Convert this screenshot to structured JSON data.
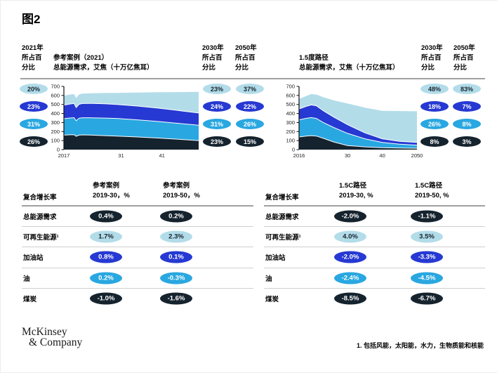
{
  "page": {
    "title": "图2",
    "footnote": "1. 包括风能，太阳能，水力，生物质能和核能",
    "logo_line1": "McKinsey",
    "logo_line2": "& Company"
  },
  "palette": {
    "light": {
      "bg": "#b3dce9",
      "fg": "#15232e"
    },
    "royal": {
      "bg": "#2639d2",
      "fg": "#ffffff"
    },
    "cyan": {
      "bg": "#29a7e0",
      "fg": "#ffffff"
    },
    "navy": {
      "bg": "#15232e",
      "fg": "#ffffff"
    }
  },
  "shares": {
    "layer_colors": [
      "light",
      "royal",
      "cyan",
      "navy"
    ],
    "left2021": {
      "year_label": "2021年",
      "sub1": "所占百",
      "sub2": "分比",
      "values": [
        "20%",
        "23%",
        "31%",
        "26%"
      ]
    },
    "left2030": {
      "year_label": "2030年",
      "sub1": "所占百",
      "sub2": "分比",
      "values": [
        "23%",
        "24%",
        "31%",
        "23%"
      ]
    },
    "left2050": {
      "year_label": "2050年",
      "sub1": "所占百",
      "sub2": "分比",
      "values": [
        "37%",
        "22%",
        "26%",
        "15%"
      ]
    },
    "right2030": {
      "year_label": "2030年",
      "sub1": "所占百",
      "sub2": "分比",
      "values": [
        "48%",
        "18%",
        "26%",
        "8%"
      ]
    },
    "right2050": {
      "year_label": "2050年",
      "sub1": "所占百",
      "sub2": "分比",
      "values": [
        "83%",
        "7%",
        "8%",
        "3%"
      ]
    }
  },
  "tables": {
    "left": {
      "corner": "复合增长率",
      "col1_header": [
        "参考案例",
        "2019-30，%"
      ],
      "col2_header": [
        "参考案例",
        "2019-50，%"
      ],
      "rows": [
        {
          "label": "总能源需求",
          "color": "navy",
          "v1": "0.4%",
          "v2": "0.2%"
        },
        {
          "label": "可再生能源¹",
          "color": "light",
          "v1": "1.7%",
          "v2": "2.3%"
        },
        {
          "label": "加油站",
          "color": "royal",
          "v1": "0.8%",
          "v2": "0.1%"
        },
        {
          "label": "油",
          "color": "cyan",
          "v1": "0.2%",
          "v2": "-0.3%"
        },
        {
          "label": "煤炭",
          "color": "navy",
          "v1": "-1.0%",
          "v2": "-1.6%"
        }
      ]
    },
    "right": {
      "corner": "复合增长率",
      "col1_header": [
        "1.5C路径",
        "2019-30, %"
      ],
      "col2_header": [
        "1.5C路径",
        "2019-50, %"
      ],
      "rows": [
        {
          "label": "总能源需求",
          "color": "navy",
          "v1": "-2.0%",
          "v2": "-1.1%"
        },
        {
          "label": "可再生能源¹",
          "color": "light",
          "v1": "4.0%",
          "v2": "3.5%"
        },
        {
          "label": "加油站",
          "color": "royal",
          "v1": "-2.0%",
          "v2": "-3.3%"
        },
        {
          "label": "油",
          "color": "cyan",
          "v1": "-2.4%",
          "v2": "-4.5%"
        },
        {
          "label": "煤炭",
          "color": "navy",
          "v1": "-8.5%",
          "v2": "-6.7%"
        }
      ]
    }
  },
  "chart_data": [
    {
      "type": "area",
      "title": "参考案例（2021） 总能源需求，艾焦（十万亿焦耳）",
      "title_lines": [
        "参考案例（2021）",
        "总能源需求，艾焦（十万亿焦耳）"
      ],
      "xlim": [
        2017,
        2050
      ],
      "ylim": [
        0,
        700
      ],
      "yticks": [
        0,
        100,
        200,
        300,
        400,
        500,
        600,
        700
      ],
      "xticks": [
        {
          "year": 2017,
          "label": "2017"
        },
        {
          "year": 2031,
          "label": "31"
        },
        {
          "year": 2041,
          "label": "41"
        }
      ],
      "x": [
        2017,
        2018.5,
        2019.5,
        2020,
        2020.7,
        2021.5,
        2024,
        2027,
        2030,
        2035,
        2040,
        2045,
        2050
      ],
      "series": [
        {
          "name": "煤炭",
          "color": "navy",
          "values": [
            160,
            164,
            166,
            148,
            160,
            163,
            160,
            155,
            150,
            140,
            128,
            114,
            100
          ]
        },
        {
          "name": "油",
          "color": "cyan",
          "values": [
            183,
            186,
            188,
            172,
            188,
            190,
            192,
            194,
            195,
            190,
            184,
            177,
            170
          ]
        },
        {
          "name": "加油站",
          "color": "royal",
          "values": [
            150,
            155,
            157,
            146,
            154,
            157,
            160,
            158,
            155,
            152,
            148,
            142,
            135
          ]
        },
        {
          "name": "可再生能源",
          "color": "light",
          "values": [
            105,
            105,
            104,
            106,
            108,
            110,
            112,
            120,
            128,
            150,
            176,
            204,
            235
          ]
        }
      ]
    },
    {
      "type": "area",
      "title": "1.5度路径 总能源需求，艾焦（十万亿焦耳）",
      "title_lines": [
        "1.5度路径",
        "总能源需求，艾焦（十万亿焦耳）"
      ],
      "xlim": [
        2016,
        2050
      ],
      "ylim": [
        0,
        700
      ],
      "yticks": [
        0,
        100,
        200,
        300,
        400,
        500,
        600,
        700
      ],
      "xticks": [
        {
          "year": 2016,
          "label": "2016"
        },
        {
          "year": 2030,
          "label": "30"
        },
        {
          "year": 2040,
          "label": "40"
        },
        {
          "year": 2050,
          "label": "2050"
        }
      ],
      "x": [
        2016,
        2018,
        2019.5,
        2021,
        2023,
        2026,
        2030,
        2035,
        2040,
        2045,
        2050
      ],
      "series": [
        {
          "name": "煤炭",
          "color": "navy",
          "values": [
            140,
            150,
            155,
            150,
            125,
            85,
            45,
            30,
            22,
            18,
            15
          ]
        },
        {
          "name": "油",
          "color": "cyan",
          "values": [
            190,
            196,
            200,
            195,
            175,
            160,
            135,
            90,
            58,
            42,
            35
          ]
        },
        {
          "name": "加油站",
          "color": "royal",
          "values": [
            120,
            132,
            140,
            140,
            130,
            115,
            95,
            65,
            40,
            32,
            30
          ]
        },
        {
          "name": "可再生能源",
          "color": "light",
          "values": [
            110,
            114,
            120,
            125,
            150,
            185,
            235,
            280,
            310,
            335,
            345
          ]
        }
      ]
    }
  ]
}
